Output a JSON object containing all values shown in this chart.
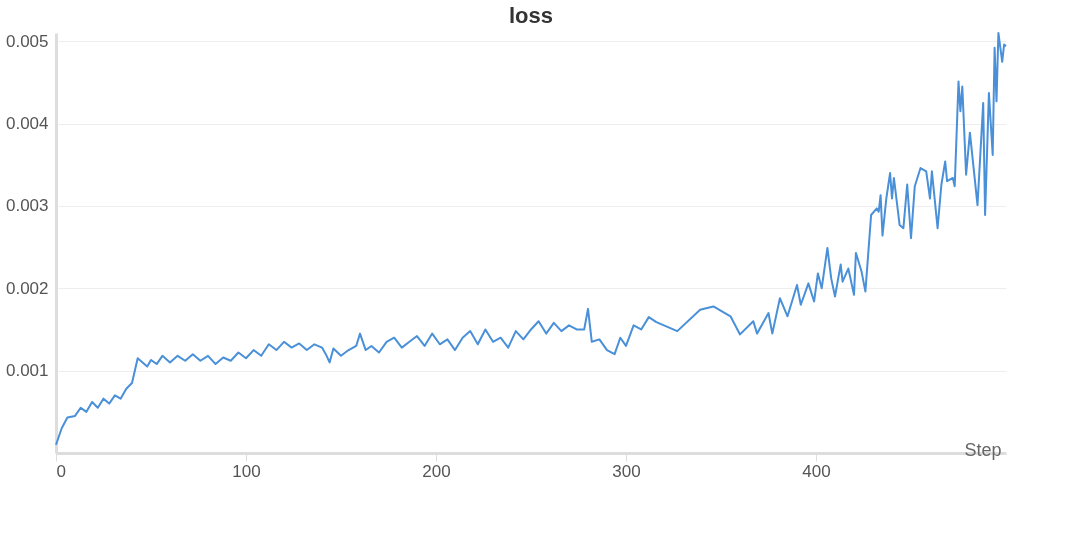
{
  "chart_data": {
    "type": "line",
    "title": "loss",
    "xlabel": "Step",
    "x": [
      0,
      3,
      6,
      10,
      13,
      16,
      19,
      22,
      25,
      28,
      31,
      34,
      37,
      40,
      43,
      48,
      50,
      53,
      56,
      60,
      64,
      68,
      72,
      76,
      80,
      84,
      88,
      92,
      96,
      100,
      104,
      108,
      112,
      116,
      120,
      124,
      128,
      132,
      136,
      140,
      142,
      144,
      146,
      150,
      154,
      158,
      160,
      163,
      166,
      170,
      174,
      178,
      182,
      186,
      190,
      194,
      198,
      202,
      206,
      210,
      214,
      218,
      222,
      226,
      230,
      234,
      238,
      242,
      246,
      250,
      254,
      258,
      262,
      266,
      270,
      274,
      278,
      280,
      282,
      286,
      290,
      294,
      297,
      300,
      304,
      308,
      312,
      316,
      327,
      339,
      346,
      355,
      360,
      367,
      369,
      375,
      377,
      381,
      385,
      390,
      392,
      396,
      399,
      401,
      403,
      406,
      408,
      410,
      413,
      414,
      417,
      420,
      421,
      424,
      426,
      429,
      432,
      433,
      434,
      435,
      437,
      439,
      440,
      441,
      444,
      446,
      448,
      450,
      452,
      455,
      458,
      460,
      461,
      464,
      466,
      468,
      469,
      472,
      473,
      475,
      476,
      477,
      479,
      481,
      485,
      488,
      489,
      491,
      493,
      494,
      495,
      496,
      498,
      499,
      500
    ],
    "series": [
      {
        "color": "#4a90d9",
        "values": [
          0.0001,
          0.0003,
          0.00043,
          0.00045,
          0.00055,
          0.0005,
          0.00062,
          0.00055,
          0.00066,
          0.0006,
          0.0007,
          0.00066,
          0.00078,
          0.00085,
          0.00115,
          0.00105,
          0.00113,
          0.00108,
          0.00118,
          0.0011,
          0.00118,
          0.00112,
          0.0012,
          0.00112,
          0.00118,
          0.00108,
          0.00116,
          0.00112,
          0.00122,
          0.00115,
          0.00125,
          0.00118,
          0.00132,
          0.00125,
          0.00135,
          0.00128,
          0.00133,
          0.00125,
          0.00132,
          0.00128,
          0.0012,
          0.0011,
          0.00127,
          0.00118,
          0.00125,
          0.0013,
          0.00145,
          0.00125,
          0.0013,
          0.00122,
          0.00135,
          0.0014,
          0.00128,
          0.00135,
          0.00142,
          0.0013,
          0.00145,
          0.00132,
          0.00138,
          0.00125,
          0.0014,
          0.00148,
          0.00132,
          0.0015,
          0.00135,
          0.0014,
          0.00128,
          0.00148,
          0.00138,
          0.0015,
          0.0016,
          0.00145,
          0.00158,
          0.00148,
          0.00155,
          0.0015,
          0.0015,
          0.00175,
          0.00135,
          0.00138,
          0.00125,
          0.0012,
          0.0014,
          0.0013,
          0.00155,
          0.0015,
          0.00165,
          0.00159,
          0.00148,
          0.00174,
          0.00178,
          0.00166,
          0.00144,
          0.0016,
          0.00145,
          0.0017,
          0.00145,
          0.00188,
          0.00166,
          0.00204,
          0.0018,
          0.00206,
          0.00184,
          0.00218,
          0.002,
          0.00249,
          0.00212,
          0.0019,
          0.00229,
          0.00208,
          0.00224,
          0.00192,
          0.00243,
          0.0022,
          0.00196,
          0.00289,
          0.00297,
          0.00293,
          0.00313,
          0.00264,
          0.00309,
          0.0034,
          0.00309,
          0.00334,
          0.00277,
          0.00273,
          0.00326,
          0.00261,
          0.00324,
          0.00346,
          0.00342,
          0.00309,
          0.00342,
          0.00273,
          0.00326,
          0.00354,
          0.0033,
          0.00334,
          0.00324,
          0.00451,
          0.00415,
          0.00445,
          0.00338,
          0.00389,
          0.00301,
          0.00425,
          0.00289,
          0.00437,
          0.00362,
          0.00492,
          0.00427,
          0.0051,
          0.00475,
          0.00496,
          0.00494
        ]
      }
    ],
    "xlim": [
      0,
      500
    ],
    "xticks": [
      0,
      100,
      200,
      300,
      400
    ],
    "ylim": [
      0,
      0.0051
    ],
    "yticks": [
      0.001,
      0.002,
      0.003,
      0.004,
      0.005
    ],
    "grid": "y",
    "legend": false,
    "marker": "none",
    "line_style": "solid"
  }
}
